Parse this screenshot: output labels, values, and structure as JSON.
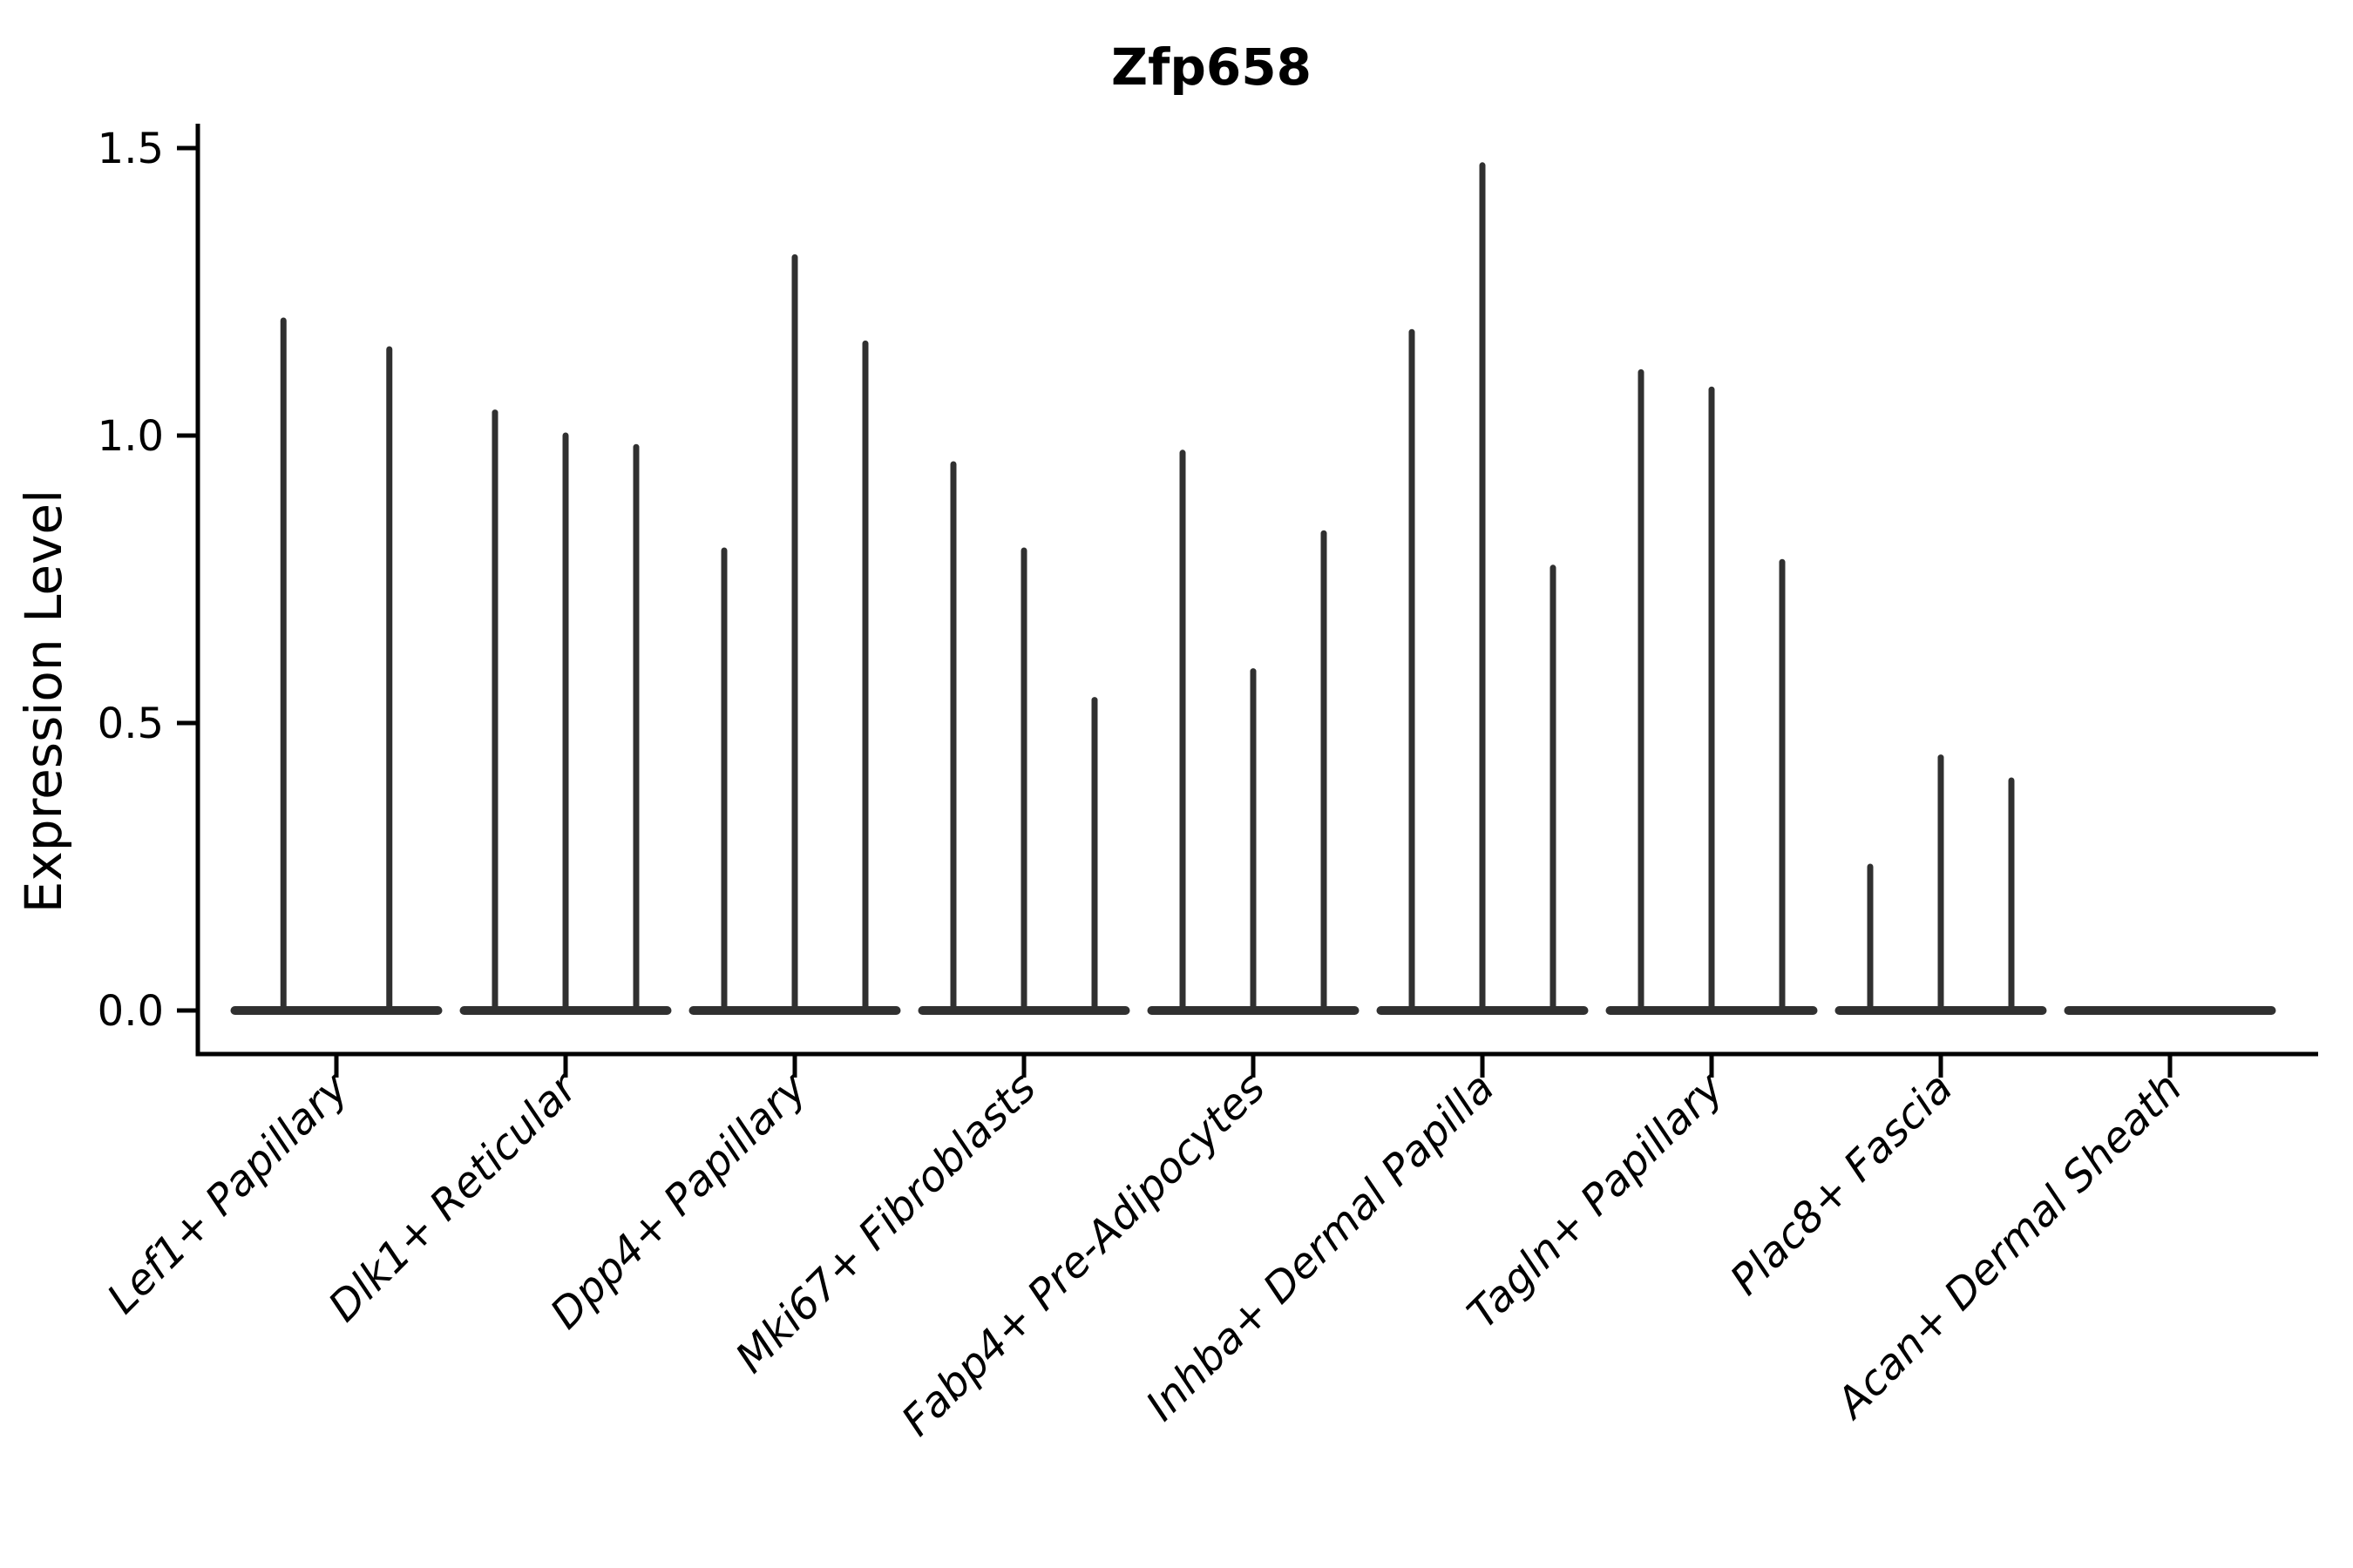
{
  "figure": {
    "background": "#ffffff"
  },
  "chart_data": {
    "type": "violin",
    "title": "Zfp658",
    "ylabel": "Expression Level",
    "xlabel": "",
    "grid": false,
    "legend": false,
    "ink_color": "#303030",
    "axis_color": "#000000",
    "ylim": [
      -0.08,
      1.54
    ],
    "yticks": [
      "0.0",
      "0.5",
      "1.0",
      "1.5"
    ],
    "ytick_values": [
      0.0,
      0.5,
      1.0,
      1.5
    ],
    "categories": [
      "Lef1+ Papillary",
      "Dlk1+ Reticular",
      "Dpp4+ Papillary",
      "Mki67+ Fibroblasts",
      "Fabp4+ Pre-Adipocytes",
      "Inhba+ Dermal Papilla",
      "Tagln+ Papillary",
      "Plac8+ Fascia",
      "Acan+ Dermal Sheath"
    ],
    "groups": [
      {
        "label": "Lef1+ Papillary",
        "violin_maxima": [
          1.2,
          1.15
        ]
      },
      {
        "label": "Dlk1+ Reticular",
        "violin_maxima": [
          1.04,
          1.0,
          0.98
        ]
      },
      {
        "label": "Dpp4+ Papillary",
        "violin_maxima": [
          0.8,
          1.31,
          1.16
        ]
      },
      {
        "label": "Mki67+ Fibroblasts",
        "violin_maxima": [
          0.95,
          0.8,
          0.54
        ]
      },
      {
        "label": "Fabp4+ Pre-Adipocytes",
        "violin_maxima": [
          0.97,
          0.59,
          0.83
        ]
      },
      {
        "label": "Inhba+ Dermal Papilla",
        "violin_maxima": [
          1.18,
          1.47,
          0.77
        ]
      },
      {
        "label": "Tagln+ Papillary",
        "violin_maxima": [
          1.11,
          1.08,
          0.78
        ]
      },
      {
        "label": "Plac8+ Fascia",
        "violin_maxima": [
          0.25,
          0.44,
          0.4
        ]
      },
      {
        "label": "Acan+ Dermal Sheath",
        "violin_maxima": []
      }
    ]
  }
}
